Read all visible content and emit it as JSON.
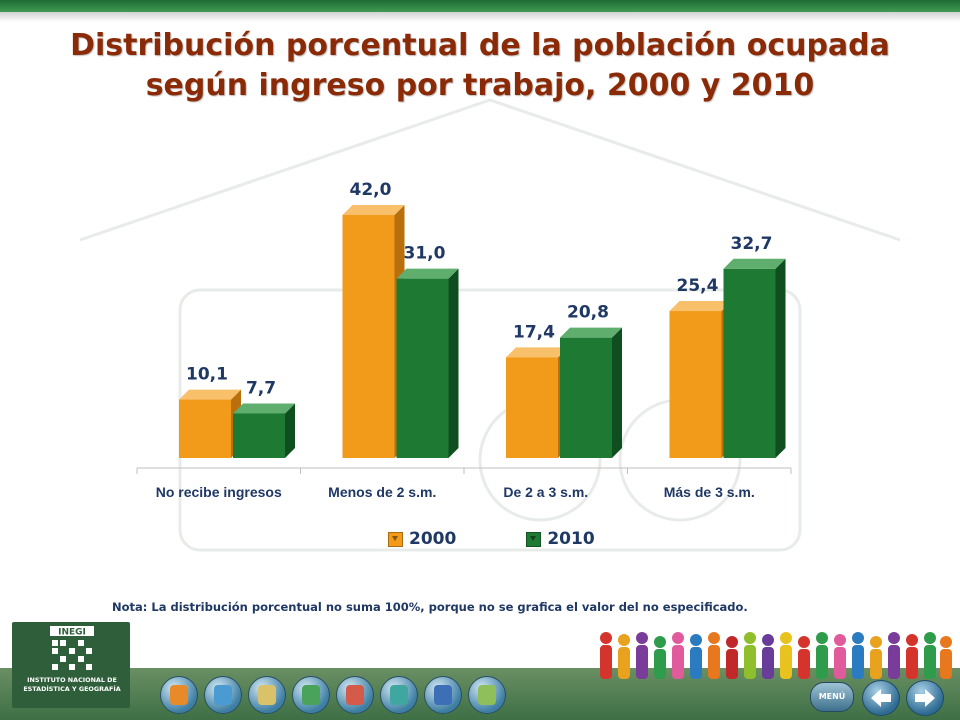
{
  "title": {
    "line1": "Distribución porcentual de la población ocupada",
    "line2": "según ingreso por trabajo, 2000 y 2010"
  },
  "chart_data": {
    "type": "bar",
    "title": "Distribución porcentual de la población ocupada según ingreso por trabajo, 2000 y 2010",
    "categories": [
      "No recibe ingresos",
      "Menos de 2 s.m.",
      "De 2 a 3 s.m.",
      "Más de 3 s.m."
    ],
    "series": [
      {
        "name": "2000",
        "values": [
          10.1,
          42.0,
          17.4,
          25.4
        ],
        "labels": [
          "10,1",
          "42,0",
          "17,4",
          "25,4"
        ],
        "color": "#f29a1a"
      },
      {
        "name": "2010",
        "values": [
          7.7,
          31.0,
          20.8,
          32.7
        ],
        "labels": [
          "7,7",
          "31,0",
          "20,8",
          "32,7"
        ],
        "color": "#1e7a33"
      }
    ],
    "ylim": [
      0,
      45
    ],
    "xlabel": "",
    "ylabel": "",
    "grid": false,
    "legend": "bottom"
  },
  "legend": {
    "items": [
      "2000",
      "2010"
    ]
  },
  "note": "Nota: La distribución porcentual no suma 100%, porque no se grafica el valor del no especificado.",
  "colors": {
    "title": "#8b2a07",
    "label": "#1f3864",
    "bar_2000": "#f29a1a",
    "bar_2010": "#1e7a33",
    "header": "#2e7d3f"
  },
  "icons": [
    "family-icon",
    "person-info-icon",
    "group-icon",
    "people-icon",
    "house-icon",
    "home-icon",
    "wheelchair-icon",
    "map-icon"
  ],
  "navigation": {
    "menu_label": "MENÚ"
  },
  "branding": {
    "logo_name": "INEGI",
    "logo_text": "INSTITUTO NACIONAL DE ESTADÍSTICA Y GEOGRAFÍA"
  }
}
